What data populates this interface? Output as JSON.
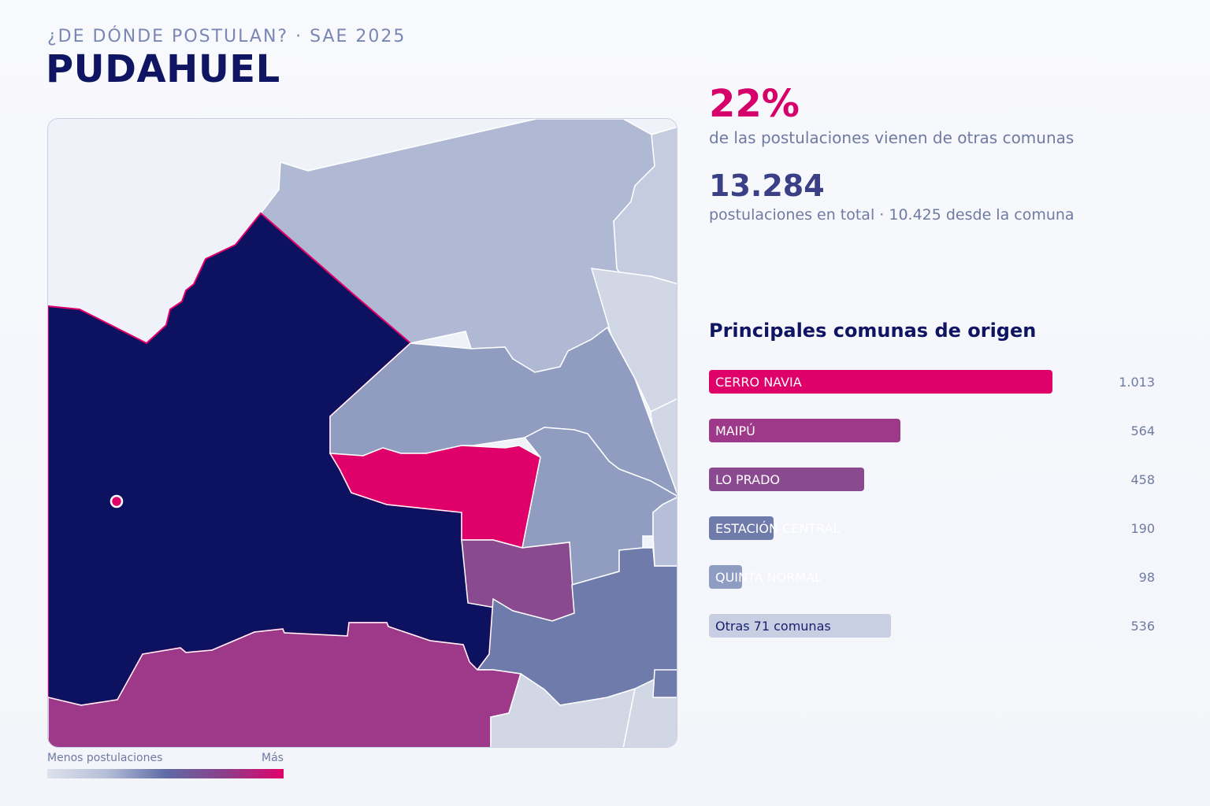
{
  "header": {
    "eyebrow": "¿DE DÓNDE POSTULAN? · SAE 2025",
    "title": "PUDAHUEL"
  },
  "stats": {
    "share_pct": "22%",
    "share_label": "de las postulaciones vienen de otras comunas",
    "total": "13.284",
    "total_label": "postulaciones en total · 10.425 desde la comuna"
  },
  "ranking": {
    "title": "Principales comunas de origen",
    "max_value": 1013,
    "items": [
      {
        "name": "CERRO NAVIA",
        "value": 1013,
        "value_label": "1.013",
        "color": "#df0069",
        "label_dark": false
      },
      {
        "name": "MAIPÚ",
        "value": 564,
        "value_label": "564",
        "color": "#9e3889",
        "label_dark": false
      },
      {
        "name": "LO PRADO",
        "value": 458,
        "value_label": "458",
        "color": "#8a4a8f",
        "label_dark": false
      },
      {
        "name": "ESTACIÓN CENTRAL",
        "value": 190,
        "value_label": "190",
        "color": "#6e7bab",
        "label_dark": false
      },
      {
        "name": "QUINTA NORMAL",
        "value": 98,
        "value_label": "98",
        "color": "#8f9cc1",
        "label_dark": false
      },
      {
        "name": "Otras 71 comunas",
        "value": 536,
        "value_label": "536",
        "color": "#c9cfe2",
        "label_dark": true
      }
    ]
  },
  "legend": {
    "low_label": "Menos postulaciones",
    "high_label": "Más"
  },
  "map_colors": {
    "home": "#0c1160",
    "highest": "#df0069",
    "high": "#9e3889",
    "mid_high": "#8a4a8f",
    "mid": "#6e7bab",
    "low": "#909dc1",
    "lower": "#afb9d3",
    "lowest": "#d2d7e6"
  }
}
